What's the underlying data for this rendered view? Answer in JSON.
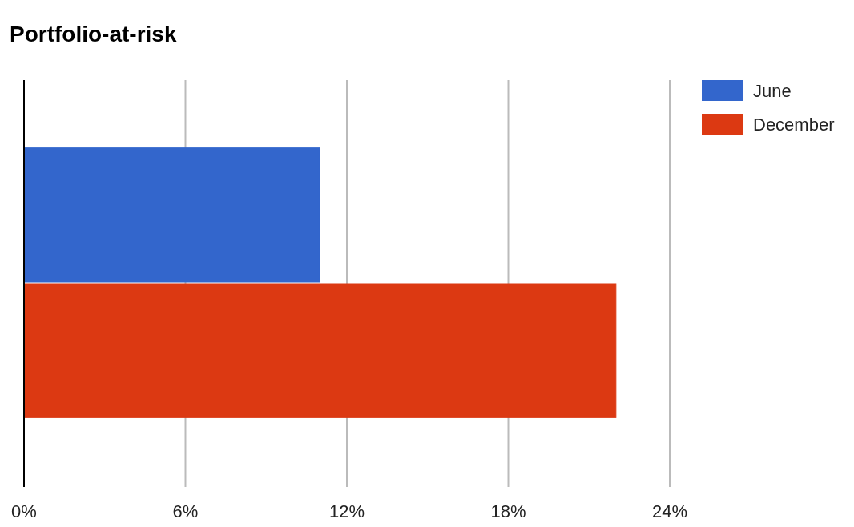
{
  "chart_data": {
    "type": "bar",
    "title": "Portfolio-at-risk",
    "orientation": "horizontal",
    "categories": [
      null
    ],
    "series": [
      {
        "name": "June",
        "color": "#3366cc",
        "values": [
          11
        ]
      },
      {
        "name": "December",
        "color": "#dc3912",
        "values": [
          22
        ]
      }
    ],
    "xlim": [
      0,
      24
    ],
    "xticks": [
      {
        "value": 0,
        "label": "0%"
      },
      {
        "value": 6,
        "label": "6%"
      },
      {
        "value": 12,
        "label": "12%"
      },
      {
        "value": 18,
        "label": "18%"
      },
      {
        "value": 24,
        "label": "24%"
      }
    ],
    "grid": "x",
    "legend": "top right"
  }
}
